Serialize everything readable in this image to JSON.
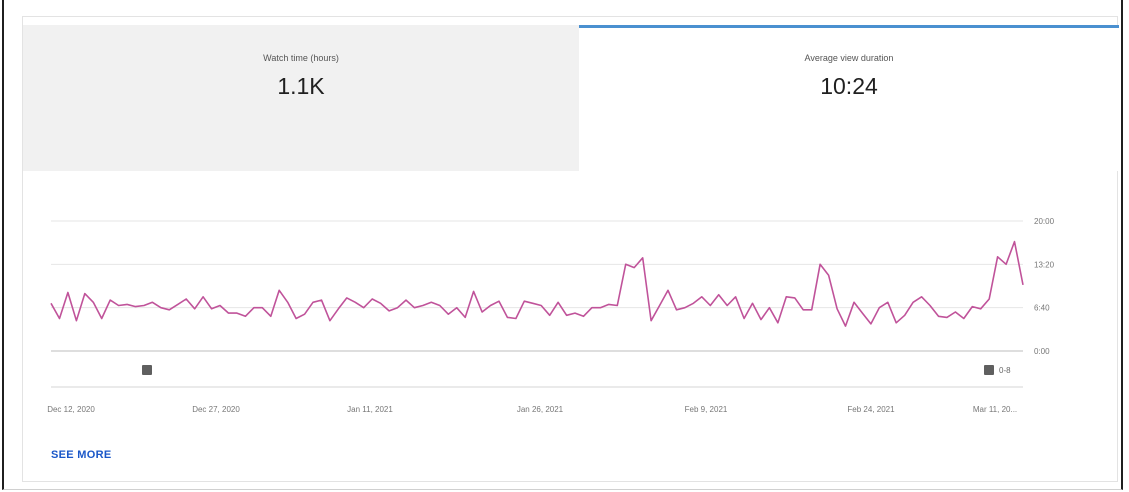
{
  "tabs": [
    {
      "label": "Watch time (hours)",
      "value": "1.1K"
    },
    {
      "label": "Average view duration",
      "value": "10:24"
    }
  ],
  "see_more_label": "SEE MORE",
  "colors": {
    "line": "#c0539a",
    "tab_accent": "#4a90d0",
    "link": "#1a57c8",
    "selected_tab_bg": "#f1f1f1"
  },
  "handle_range_label": "0-8",
  "icons": [
    "range-handle-left-icon",
    "range-handle-right-icon"
  ],
  "chart_data": {
    "type": "line",
    "ylabel_ticks": [
      "0:00",
      "6:40",
      "13:20",
      "20:00"
    ],
    "ytick_values": [
      0,
      400,
      800,
      1200
    ],
    "ylim": [
      0,
      1200
    ],
    "x_tick_labels": [
      "Dec 12, 2020",
      "Dec 27, 2020",
      "Jan 11, 2021",
      "Jan 26, 2021",
      "Feb 9, 2021",
      "Feb 24, 2021",
      "Mar 11, 20..."
    ],
    "grid": true,
    "series": [
      {
        "values": [
          440,
          300,
          540,
          280,
          530,
          450,
          300,
          470,
          420,
          430,
          410,
          420,
          450,
          400,
          380,
          430,
          480,
          390,
          500,
          390,
          420,
          350,
          350,
          320,
          400,
          400,
          320,
          560,
          450,
          300,
          340,
          450,
          470,
          280,
          390,
          490,
          450,
          400,
          480,
          440,
          370,
          400,
          470,
          400,
          420,
          450,
          420,
          340,
          400,
          310,
          550,
          360,
          420,
          460,
          310,
          300,
          460,
          440,
          420,
          330,
          450,
          330,
          350,
          320,
          400,
          400,
          430,
          420,
          800,
          770,
          860,
          280,
          420,
          560,
          380,
          400,
          440,
          500,
          420,
          520,
          420,
          500,
          300,
          440,
          290,
          400,
          260,
          500,
          490,
          380,
          380,
          800,
          700,
          390,
          230,
          450,
          350,
          250,
          400,
          450,
          260,
          330,
          450,
          500,
          420,
          320,
          310,
          360,
          300,
          410,
          390,
          480,
          870,
          800,
          1010,
          610
        ]
      }
    ]
  }
}
